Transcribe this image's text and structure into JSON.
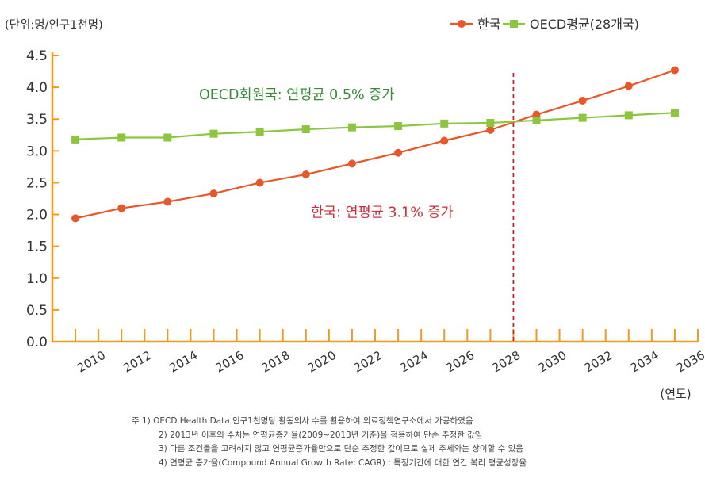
{
  "chart_data": {
    "type": "line",
    "unit_label": "(단위:명/인구1천명)",
    "xlabel": "(연도)",
    "ylim": [
      0,
      4.5
    ],
    "yticks": [
      "0.0",
      "0.5",
      "1.0",
      "1.5",
      "2.0",
      "2.5",
      "3.0",
      "3.5",
      "4.0",
      "4.5"
    ],
    "xlim": [
      2008,
      2036
    ],
    "xticks": [
      "2010",
      "2012",
      "2014",
      "2016",
      "2018",
      "2020",
      "2022",
      "2024",
      "2026",
      "2028",
      "2030",
      "2032",
      "2034",
      "2036"
    ],
    "marker_line_x": 2028,
    "series": [
      {
        "name": "한국",
        "color": "#e8572a",
        "marker": "circle",
        "x": [
          2009,
          2011,
          2013,
          2015,
          2017,
          2019,
          2021,
          2023,
          2025,
          2027,
          2029,
          2031,
          2033,
          2035
        ],
        "values": [
          1.94,
          2.1,
          2.2,
          2.33,
          2.5,
          2.63,
          2.8,
          2.97,
          3.16,
          3.33,
          3.57,
          3.79,
          4.02,
          4.27
        ]
      },
      {
        "name": "OECD평균(28개국)",
        "color": "#8cc63f",
        "marker": "square",
        "x": [
          2009,
          2011,
          2013,
          2015,
          2017,
          2019,
          2021,
          2023,
          2025,
          2027,
          2029,
          2031,
          2033,
          2035
        ],
        "values": [
          3.18,
          3.21,
          3.21,
          3.27,
          3.3,
          3.34,
          3.37,
          3.39,
          3.43,
          3.44,
          3.48,
          3.52,
          3.56,
          3.6
        ]
      }
    ],
    "annotations": [
      {
        "text": "OECD회원국: 연평균 0.5% 증가",
        "color": "#3a8a3a",
        "x": 2018.6,
        "y": 3.9
      },
      {
        "text": "한국: 연평균 3.1% 증가",
        "color": "#c8303a",
        "x": 2022.3,
        "y": 2.05
      }
    ]
  },
  "notes": [
    "주 1) OECD Health Data 인구1천명당 활동의사 수를 활용하여 의료정책연구소에서 가공하였음",
    "2) 2013년 이후의 수치는 연평균증가율(2009~2013년 기준)을 적용하여 단순 추정한 값임",
    "3) 다른 조건들을 고려하지 않고 연평균증가율만으로 단순 추정한 값이므로 실제 추세와는 상이할 수 있음",
    "4) 연평균 증가율(Compound Annual Growth Rate: CAGR) : 특정기간에 대한 연간 복리 평균성장율"
  ]
}
